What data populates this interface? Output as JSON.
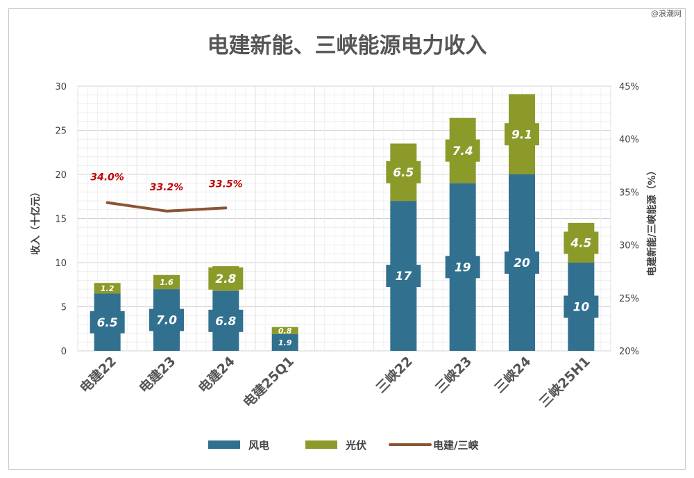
{
  "watermark": "@浪潮网",
  "chart_data": {
    "type": "bar",
    "title": "电建新能、三峡能源电力收入",
    "categories": [
      "电建22",
      "电建23",
      "电建24",
      "电建25Q1",
      "",
      "三峡22",
      "三峡23",
      "三峡24",
      "三峡25H1"
    ],
    "series": [
      {
        "name": "风电",
        "values": [
          6.5,
          7.0,
          6.8,
          1.9,
          null,
          17,
          19,
          20,
          10
        ],
        "labels": [
          "6.5",
          "7.0",
          "6.8",
          "1.9",
          "",
          "17",
          "19",
          "20",
          "10"
        ],
        "color": "#31708f"
      },
      {
        "name": "光伏",
        "values": [
          1.2,
          1.6,
          2.8,
          0.8,
          null,
          6.5,
          7.4,
          9.1,
          4.5
        ],
        "labels": [
          "1.2",
          "1.6",
          "2.8",
          "0.8",
          "",
          "6.5",
          "7.4",
          "9.1",
          "4.5"
        ],
        "color": "#8c9a2a"
      },
      {
        "name": "电建/三峡",
        "type": "line",
        "axis": "right",
        "values": [
          34.0,
          33.2,
          33.5,
          null,
          null,
          null,
          null,
          null,
          null
        ],
        "labels": [
          "34.0%",
          "33.2%",
          "33.5%",
          "",
          "",
          "",
          "",
          "",
          ""
        ],
        "color": "#8b5535"
      }
    ],
    "ylabel": "收入（十亿元）",
    "y2label": "电建新能/三峡能源（%）",
    "ylim": [
      0,
      30
    ],
    "y2lim": [
      20,
      45
    ],
    "yticks": [
      "0",
      "5",
      "10",
      "15",
      "20",
      "25",
      "30"
    ],
    "y2ticks": [
      "20%",
      "25%",
      "30%",
      "35%",
      "40%",
      "45%"
    ],
    "grid": true,
    "legend": "bottom"
  }
}
